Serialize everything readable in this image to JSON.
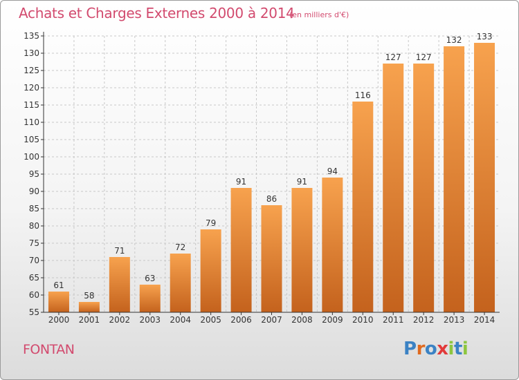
{
  "header": {
    "title": "Achats et Charges Externes 2000 à 2014",
    "subtitle": "(en milliers d'€)"
  },
  "footer": {
    "place": "FONTAN",
    "logo_text": "Proxiti",
    "logo_colors": [
      "#3b82c4",
      "#e06a1f",
      "#3b82c4",
      "#e23a3a",
      "#8dc63f",
      "#3b82c4",
      "#8dc63f"
    ]
  },
  "colors": {
    "bar_light": "#f7a24e",
    "bar_dark": "#c4621d",
    "axis": "#333333",
    "grid": "#c8c8c8"
  },
  "chart_data": {
    "type": "bar",
    "categories": [
      "2000",
      "2001",
      "2002",
      "2003",
      "2004",
      "2005",
      "2006",
      "2007",
      "2008",
      "2009",
      "2010",
      "2011",
      "2012",
      "2013",
      "2014"
    ],
    "values": [
      61,
      58,
      71,
      63,
      72,
      79,
      91,
      86,
      91,
      94,
      116,
      127,
      127,
      132,
      133
    ],
    "ylim": [
      55,
      135
    ],
    "yticks": [
      55,
      60,
      65,
      70,
      75,
      80,
      85,
      90,
      95,
      100,
      105,
      110,
      115,
      120,
      125,
      130,
      135
    ],
    "grid": true
  }
}
